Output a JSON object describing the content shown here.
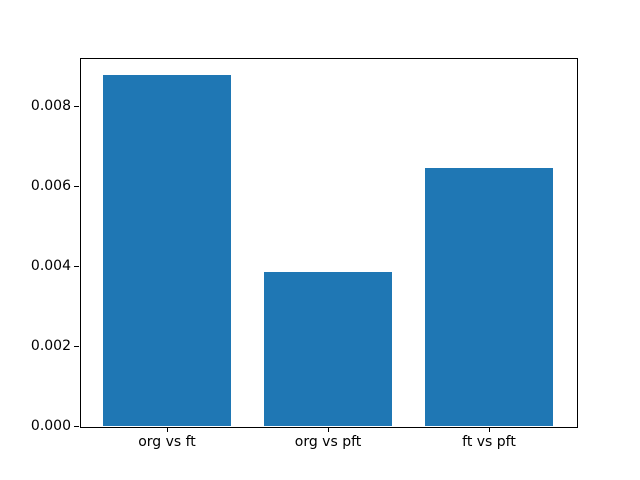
{
  "figure": {
    "background": "#ffffff",
    "bar_color": "#1f77b4",
    "spine_color": "#000000",
    "text_color": "#000000"
  },
  "chart_data": {
    "type": "bar",
    "title": "",
    "xlabel": "",
    "ylabel": "",
    "categories": [
      "org vs ft",
      "org vs pft",
      "ft vs pft"
    ],
    "values": [
      0.00877,
      0.00385,
      0.00646
    ],
    "ylim": [
      0,
      0.0092
    ],
    "xlim": [
      -0.54,
      2.54
    ],
    "bar_width": 0.8,
    "yticks": [
      0.0,
      0.002,
      0.004,
      0.006,
      0.008
    ],
    "ytick_labels": [
      "0.000",
      "0.002",
      "0.004",
      "0.006",
      "0.008"
    ],
    "grid": false,
    "legend": null
  }
}
